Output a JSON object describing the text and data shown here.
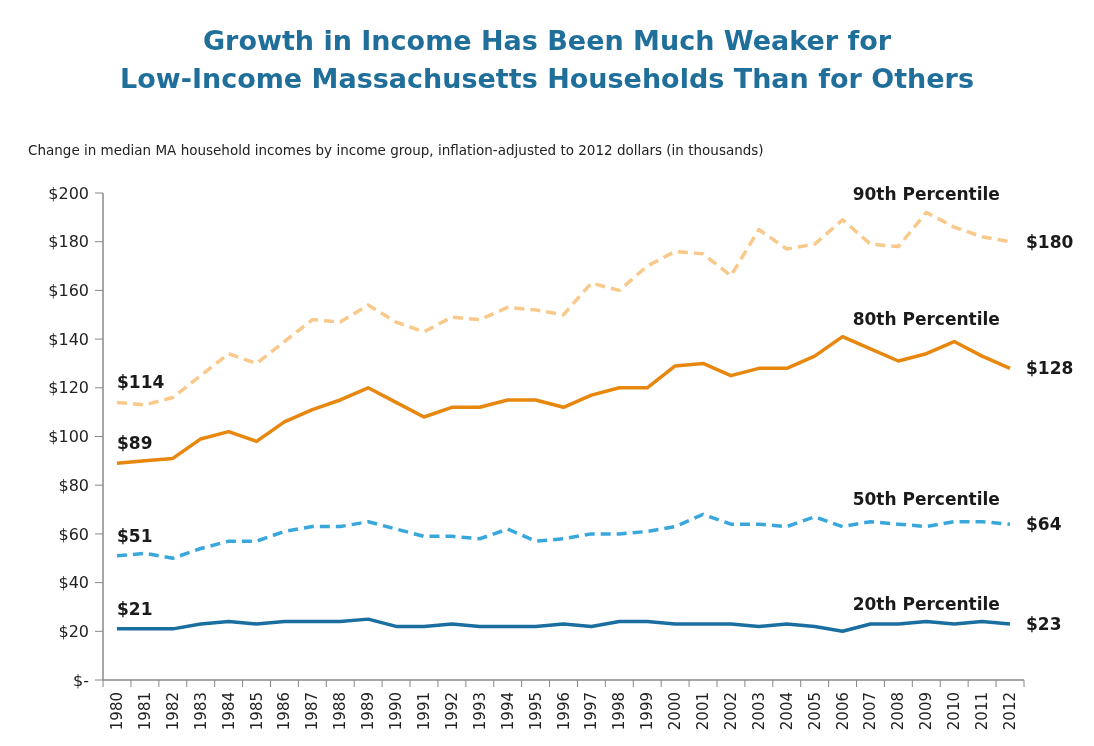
{
  "chart_data": {
    "type": "line",
    "title": "Growth in Income Has Been Much Weaker for Low-Income Massachusetts Households Than for Others",
    "subtitle": "Change in median MA household incomes by income group, inflation-adjusted to 2012 dollars (in thousands)",
    "categories": [
      "1980",
      "1981",
      "1982",
      "1983",
      "1984",
      "1985",
      "1986",
      "1987",
      "1988",
      "1989",
      "1990",
      "1991",
      "1992",
      "1993",
      "1994",
      "1995",
      "1996",
      "1997",
      "1998",
      "1999",
      "2000",
      "2001",
      "2002",
      "2003",
      "2004",
      "2005",
      "2006",
      "2007",
      "2008",
      "2009",
      "2010",
      "2011",
      "2012"
    ],
    "ylim": [
      0,
      200
    ],
    "yticks": [
      {
        "value": 0,
        "label": "$-"
      },
      {
        "value": 20,
        "label": "$20"
      },
      {
        "value": 40,
        "label": "$40"
      },
      {
        "value": 60,
        "label": "$60"
      },
      {
        "value": 80,
        "label": "$80"
      },
      {
        "value": 100,
        "label": "$100"
      },
      {
        "value": 120,
        "label": "$120"
      },
      {
        "value": 140,
        "label": "$140"
      },
      {
        "value": 160,
        "label": "$160"
      },
      {
        "value": 180,
        "label": "$180"
      },
      {
        "value": 200,
        "label": "$200"
      }
    ],
    "grid": false,
    "legend": false,
    "marker": "none",
    "series": [
      {
        "name": "90th Percentile",
        "color": "#f9c98b",
        "line_style": "dashed",
        "values": [
          114,
          113,
          116,
          125,
          134,
          130,
          139,
          148,
          147,
          154,
          147,
          143,
          149,
          148,
          153,
          152,
          150,
          163,
          160,
          170,
          176,
          175,
          166,
          185,
          177,
          179,
          189,
          179,
          178,
          192,
          186,
          182,
          180
        ],
        "value_labels": [
          "$114",
          null,
          null,
          null,
          null,
          null,
          null,
          null,
          null,
          null,
          null,
          null,
          null,
          null,
          null,
          null,
          null,
          null,
          null,
          null,
          null,
          null,
          null,
          null,
          null,
          null,
          null,
          null,
          null,
          null,
          null,
          null,
          "$180"
        ]
      },
      {
        "name": "80th Percentile",
        "color": "#e8870e",
        "line_style": "solid",
        "values": [
          89,
          90,
          91,
          99,
          102,
          98,
          106,
          111,
          115,
          120,
          114,
          108,
          112,
          112,
          115,
          115,
          112,
          117,
          120,
          120,
          129,
          130,
          125,
          128,
          128,
          133,
          141,
          136,
          131,
          134,
          139,
          133,
          128
        ],
        "value_labels": [
          "$89",
          null,
          null,
          null,
          null,
          null,
          null,
          null,
          null,
          null,
          null,
          null,
          null,
          null,
          null,
          null,
          null,
          null,
          null,
          null,
          null,
          null,
          null,
          null,
          null,
          null,
          null,
          null,
          null,
          null,
          null,
          null,
          "$128"
        ]
      },
      {
        "name": "50th Percentile",
        "color": "#3aa7dc",
        "line_style": "dashed",
        "values": [
          51,
          52,
          50,
          54,
          57,
          57,
          61,
          63,
          63,
          65,
          62,
          59,
          59,
          58,
          62,
          57,
          58,
          60,
          60,
          61,
          63,
          68,
          64,
          64,
          63,
          67,
          63,
          65,
          64,
          63,
          65,
          65,
          64
        ],
        "value_labels": [
          "$51",
          null,
          null,
          null,
          null,
          null,
          null,
          null,
          null,
          null,
          null,
          null,
          null,
          null,
          null,
          null,
          null,
          null,
          null,
          null,
          null,
          null,
          null,
          null,
          null,
          null,
          null,
          null,
          null,
          null,
          null,
          null,
          "$64"
        ]
      },
      {
        "name": "20th Percentile",
        "color": "#1a6fa0",
        "line_style": "solid",
        "values": [
          21,
          21,
          21,
          23,
          24,
          23,
          24,
          24,
          24,
          25,
          22,
          22,
          23,
          22,
          22,
          22,
          23,
          22,
          24,
          24,
          23,
          23,
          23,
          22,
          23,
          22,
          20,
          23,
          23,
          24,
          23,
          24,
          23
        ],
        "value_labels": [
          "$21",
          null,
          null,
          null,
          null,
          null,
          null,
          null,
          null,
          null,
          null,
          null,
          null,
          null,
          null,
          null,
          null,
          null,
          null,
          null,
          null,
          null,
          null,
          null,
          null,
          null,
          null,
          null,
          null,
          null,
          null,
          null,
          "$23"
        ]
      }
    ]
  }
}
